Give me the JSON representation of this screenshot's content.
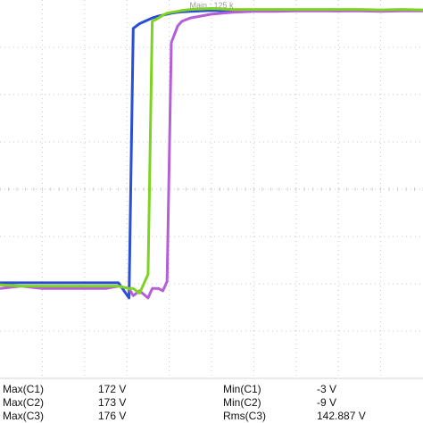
{
  "chart_data": {
    "type": "line",
    "top_label": "Main : 125 k",
    "grid": true,
    "x": [
      0,
      0.5,
      1.0,
      1.5,
      2.0,
      2.5,
      2.8,
      3.05,
      3.15,
      3.3,
      3.5,
      3.6,
      3.75,
      3.85,
      3.95,
      4.05,
      4.2,
      4.3,
      4.5,
      5.0,
      5.5,
      6.0,
      6.5,
      7.0,
      7.5,
      8.0,
      8.5,
      9.0,
      9.5,
      10.0
    ],
    "xlim": [
      0,
      10
    ],
    "ylim": [
      -4,
      4
    ],
    "series": [
      {
        "color": "#2a4fd6",
        "values": [
          -1.98,
          -1.98,
          -1.98,
          -1.98,
          -1.98,
          -1.98,
          -1.98,
          -2.3,
          3.4,
          3.5,
          3.58,
          3.62,
          3.66,
          3.68,
          3.7,
          3.72,
          3.74,
          3.75,
          3.76,
          3.78,
          3.77,
          3.78,
          3.77,
          3.78,
          3.78,
          3.77,
          3.78,
          3.77,
          3.78,
          3.78
        ]
      },
      {
        "color": "#b45ed8",
        "values": [
          -2.1,
          -2.05,
          -2.1,
          -2.1,
          -2.1,
          -2.1,
          -2.05,
          -2.1,
          -2.25,
          -2.15,
          -2.3,
          -2.1,
          -2.1,
          -2.15,
          -1.95,
          3.1,
          3.45,
          3.55,
          3.62,
          3.7,
          3.74,
          3.76,
          3.76,
          3.77,
          3.77,
          3.77,
          3.77,
          3.76,
          3.77,
          3.77
        ]
      },
      {
        "color": "#7ed321",
        "values": [
          -2.02,
          -2.05,
          -2.05,
          -2.05,
          -2.05,
          -2.05,
          -2.05,
          -2.1,
          -2.1,
          -2.2,
          -1.8,
          3.55,
          3.62,
          3.68,
          3.72,
          3.74,
          3.76,
          3.78,
          3.8,
          3.82,
          3.8,
          3.8,
          3.8,
          3.8,
          3.8,
          3.8,
          3.8,
          3.79,
          3.8,
          3.79
        ]
      }
    ]
  },
  "measurements": {
    "col1": [
      {
        "label": "Max(C1)",
        "value": "172 V"
      },
      {
        "label": "Max(C2)",
        "value": "173 V"
      },
      {
        "label": "Max(C3)",
        "value": "176 V"
      }
    ],
    "col2": [
      {
        "label": "Min(C1)",
        "value": "-3 V"
      },
      {
        "label": "Min(C2)",
        "value": "-9 V"
      },
      {
        "label": "Rms(C3)",
        "value": "142.887 V"
      }
    ]
  }
}
